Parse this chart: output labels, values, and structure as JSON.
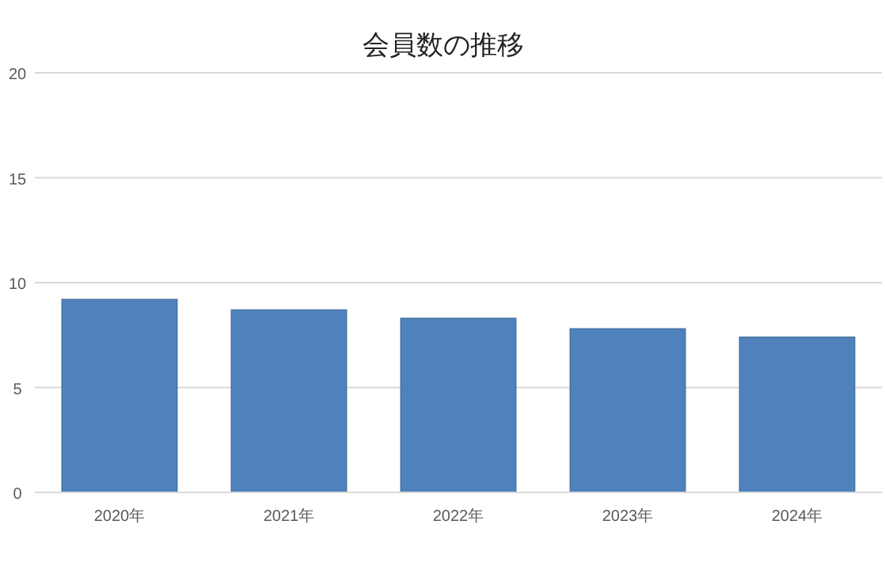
{
  "chart_data": {
    "type": "bar",
    "title": "会員数の推移",
    "categories": [
      "2020年",
      "2021年",
      "2022年",
      "2023年",
      "2024年"
    ],
    "values": [
      9.2,
      8.7,
      8.3,
      7.8,
      7.4
    ],
    "color": "#4f81bd",
    "ylim": [
      0,
      20
    ],
    "yticks": [
      0,
      5,
      10,
      15,
      20
    ],
    "grid": "y"
  }
}
